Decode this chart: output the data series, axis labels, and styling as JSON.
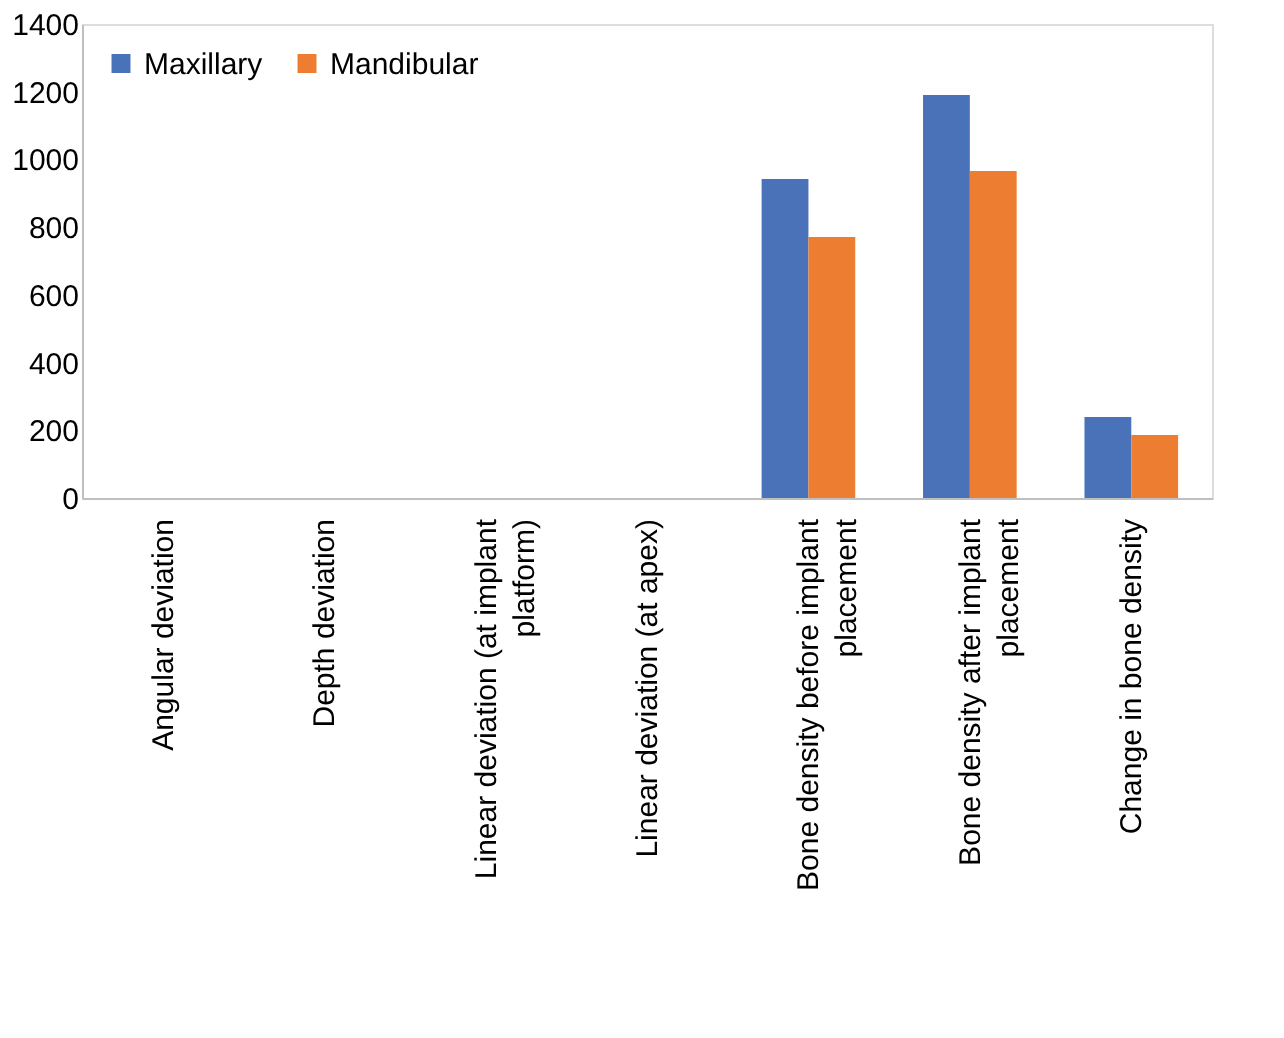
{
  "chart_data": {
    "type": "bar",
    "categories": [
      "Angular deviation",
      "Depth deviation",
      "Linear deviation (at implant platform)",
      "Linear deviation (at apex)",
      "Bone density before implant placement",
      "Bone density after implant placement",
      "Change in bone density"
    ],
    "series": [
      {
        "name": "Maxillary",
        "color": "#4a72b8",
        "values": [
          0,
          0,
          0,
          0,
          942,
          1190,
          239
        ]
      },
      {
        "name": "Mandibular",
        "color": "#ed7d31",
        "values": [
          0,
          0,
          0,
          0,
          771,
          966,
          186
        ]
      }
    ],
    "ylim": [
      0,
      1400
    ],
    "yticks": [
      0,
      200,
      400,
      600,
      800,
      1000,
      1200,
      1400
    ],
    "grid": false,
    "legend": "top left"
  }
}
